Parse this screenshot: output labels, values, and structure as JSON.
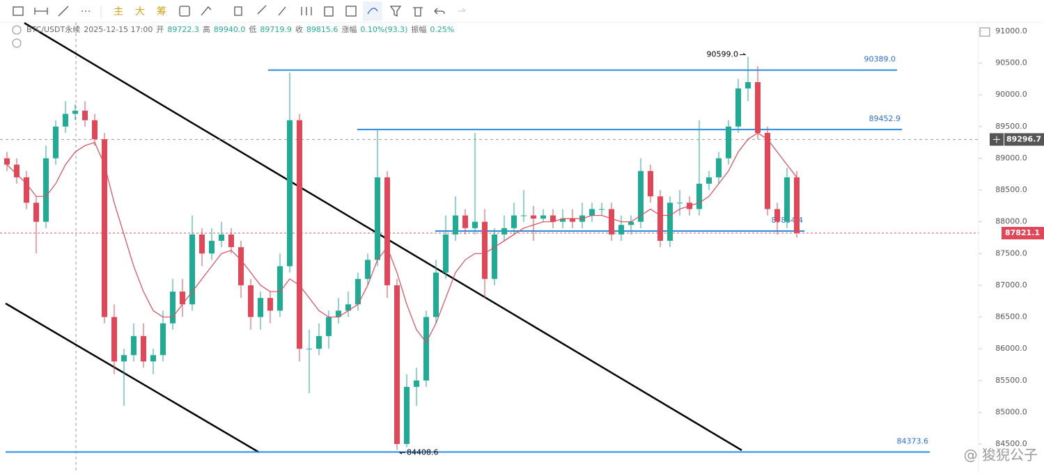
{
  "toolbar": {
    "labels": [
      "主",
      "大",
      "筹"
    ]
  },
  "header": {
    "symbol": "BTC/USDT永续",
    "time": "2025-12-15 17:00",
    "fields": [
      {
        "label": "开",
        "value": "89722.3"
      },
      {
        "label": "高",
        "value": "89940.0"
      },
      {
        "label": "低",
        "value": "89719.9"
      },
      {
        "label": "收",
        "value": "89815.6"
      },
      {
        "label": "涨幅",
        "value": "0.10%(93.3)"
      },
      {
        "label": "振幅",
        "value": "0.25%"
      }
    ]
  },
  "watermark": "@ 狻猊公子",
  "chart_data": {
    "type": "candlestick",
    "up_color": "#22ab94",
    "down_color": "#e0485a",
    "ma_color": "#e0485a",
    "open": [
      89000,
      88900,
      88700,
      88300,
      88000,
      89000,
      89500,
      89700,
      89750,
      89600,
      89300,
      86500,
      85800,
      85900,
      86200,
      85800,
      85900,
      86400,
      86900,
      86700,
      87800,
      87500,
      87700,
      87800,
      87600,
      87000,
      86500,
      86800,
      86600,
      87300,
      89600,
      86000,
      86000,
      86200,
      86500,
      86600,
      86700,
      87100,
      87400,
      88700,
      87000,
      84500,
      85400,
      85500,
      86500,
      87200,
      87800,
      88100,
      87900,
      88000,
      87100,
      87800,
      87900,
      88100,
      88100,
      88050,
      88100,
      88000,
      88050,
      88000,
      88100,
      88200,
      88200,
      87800,
      87950,
      88000,
      88800,
      88400,
      87700,
      88300,
      88300,
      88200,
      88600,
      88700,
      89000,
      89500,
      90100,
      90200,
      89400,
      88200,
      88000,
      88700
    ],
    "high": [
      89100,
      89000,
      88800,
      88400,
      89200,
      89600,
      89900,
      89850,
      89900,
      89700,
      89400,
      86700,
      86000,
      86400,
      86400,
      86000,
      86600,
      87100,
      87100,
      88100,
      87900,
      87900,
      88000,
      87900,
      87700,
      87100,
      86900,
      86900,
      87500,
      90350,
      89700,
      86300,
      86400,
      86600,
      86800,
      86900,
      87200,
      87500,
      89450,
      88800,
      87100,
      85600,
      85700,
      86600,
      87400,
      88100,
      88400,
      88200,
      89400,
      88200,
      87900,
      88100,
      88300,
      88500,
      88250,
      88200,
      88200,
      88200,
      88200,
      88300,
      88300,
      88300,
      88300,
      88100,
      88100,
      89000,
      88900,
      88500,
      88400,
      88500,
      88400,
      89600,
      88800,
      89100,
      89600,
      90250,
      90599,
      90450,
      89500,
      88300,
      88850,
      88800
    ],
    "low": [
      88800,
      88600,
      88200,
      87500,
      87900,
      88900,
      89400,
      89600,
      89500,
      89200,
      86400,
      85600,
      85100,
      85800,
      85700,
      85600,
      85800,
      86300,
      86500,
      86600,
      87300,
      87400,
      87600,
      87500,
      86800,
      86300,
      86300,
      86400,
      86500,
      87200,
      85800,
      85300,
      85900,
      86000,
      86400,
      86500,
      86600,
      87000,
      87300,
      86800,
      84408.6,
      84450,
      85100,
      85400,
      86400,
      87100,
      87700,
      87800,
      87800,
      86800,
      87000,
      87700,
      87800,
      88000,
      87700,
      88000,
      87900,
      87900,
      87900,
      87900,
      88000,
      88100,
      87700,
      87700,
      87800,
      87900,
      88300,
      87600,
      87600,
      88100,
      88100,
      88100,
      88500,
      88600,
      88900,
      89400,
      89900,
      89300,
      88100,
      87800,
      87900,
      87750
    ],
    "close": [
      88900,
      88700,
      88300,
      88000,
      89000,
      89500,
      89700,
      89750,
      89600,
      89300,
      86500,
      85800,
      85900,
      86200,
      85800,
      85900,
      86400,
      86900,
      86700,
      87800,
      87500,
      87700,
      87800,
      87600,
      87000,
      86500,
      86800,
      86600,
      87300,
      89600,
      86000,
      86000,
      86200,
      86500,
      86600,
      86700,
      87100,
      87400,
      88700,
      87000,
      84500,
      85400,
      85500,
      86500,
      87200,
      87800,
      88100,
      87900,
      88000,
      87100,
      87800,
      87900,
      88100,
      88100,
      88050,
      88100,
      88000,
      88050,
      88000,
      88100,
      88200,
      88200,
      87800,
      87950,
      88000,
      88800,
      88400,
      87700,
      88300,
      88300,
      88200,
      88600,
      88700,
      89000,
      89500,
      90100,
      90200,
      89400,
      88200,
      88000,
      88700,
      87821.1
    ],
    "ma": [
      88900,
      88750,
      88600,
      88400,
      88400,
      88600,
      88900,
      89100,
      89200,
      89250,
      88900,
      88300,
      87800,
      87300,
      86900,
      86600,
      86500,
      86500,
      86700,
      86900,
      87100,
      87300,
      87500,
      87550,
      87400,
      87200,
      87000,
      86900,
      86900,
      87100,
      87000,
      86800,
      86600,
      86500,
      86500,
      86600,
      86700,
      87000,
      87400,
      87600,
      87200,
      86700,
      86300,
      86100,
      86400,
      86800,
      87200,
      87400,
      87500,
      87500,
      87600,
      87700,
      87800,
      87900,
      87950,
      88000,
      88000,
      88050,
      88050,
      88050,
      88100,
      88100,
      88050,
      88000,
      88000,
      88100,
      88200,
      88100,
      88100,
      88200,
      88250,
      88300,
      88400,
      88600,
      88800,
      89100,
      89300,
      89400,
      89300,
      89100,
      88900,
      88700
    ],
    "high_label": "90599.0",
    "low_label": "84408.6",
    "levels": [
      {
        "value": 90389.0,
        "label": "90389.0"
      },
      {
        "value": 89452.9,
        "label": "89452.9"
      },
      {
        "value": 87854.4,
        "label": "87854.4"
      },
      {
        "value": 84373.6,
        "label": "84373.6"
      }
    ],
    "crosshair": {
      "value": 89296.7,
      "label": "89296.7"
    },
    "last_price": {
      "value": 87821.1,
      "label": "87821.1"
    },
    "ylim": [
      84000,
      91000
    ],
    "yticks": [
      {
        "value": 84500,
        "label": "84500.0"
      },
      {
        "value": 85000,
        "label": "85000.0"
      },
      {
        "value": 85500,
        "label": "85500.0"
      },
      {
        "value": 86000,
        "label": "86000.0"
      },
      {
        "value": 86500,
        "label": "86500.0"
      },
      {
        "value": 87000,
        "label": "87000.0"
      },
      {
        "value": 87500,
        "label": "87500.0"
      },
      {
        "value": 88000,
        "label": "88000.0"
      },
      {
        "value": 88500,
        "label": "88500.0"
      },
      {
        "value": 89000,
        "label": "89000.0"
      },
      {
        "value": 89500,
        "label": "89500.0"
      },
      {
        "value": 90000,
        "label": "90000.0"
      },
      {
        "value": 90500,
        "label": "90500.0"
      },
      {
        "value": 91000,
        "label": "91000.0"
      }
    ]
  }
}
